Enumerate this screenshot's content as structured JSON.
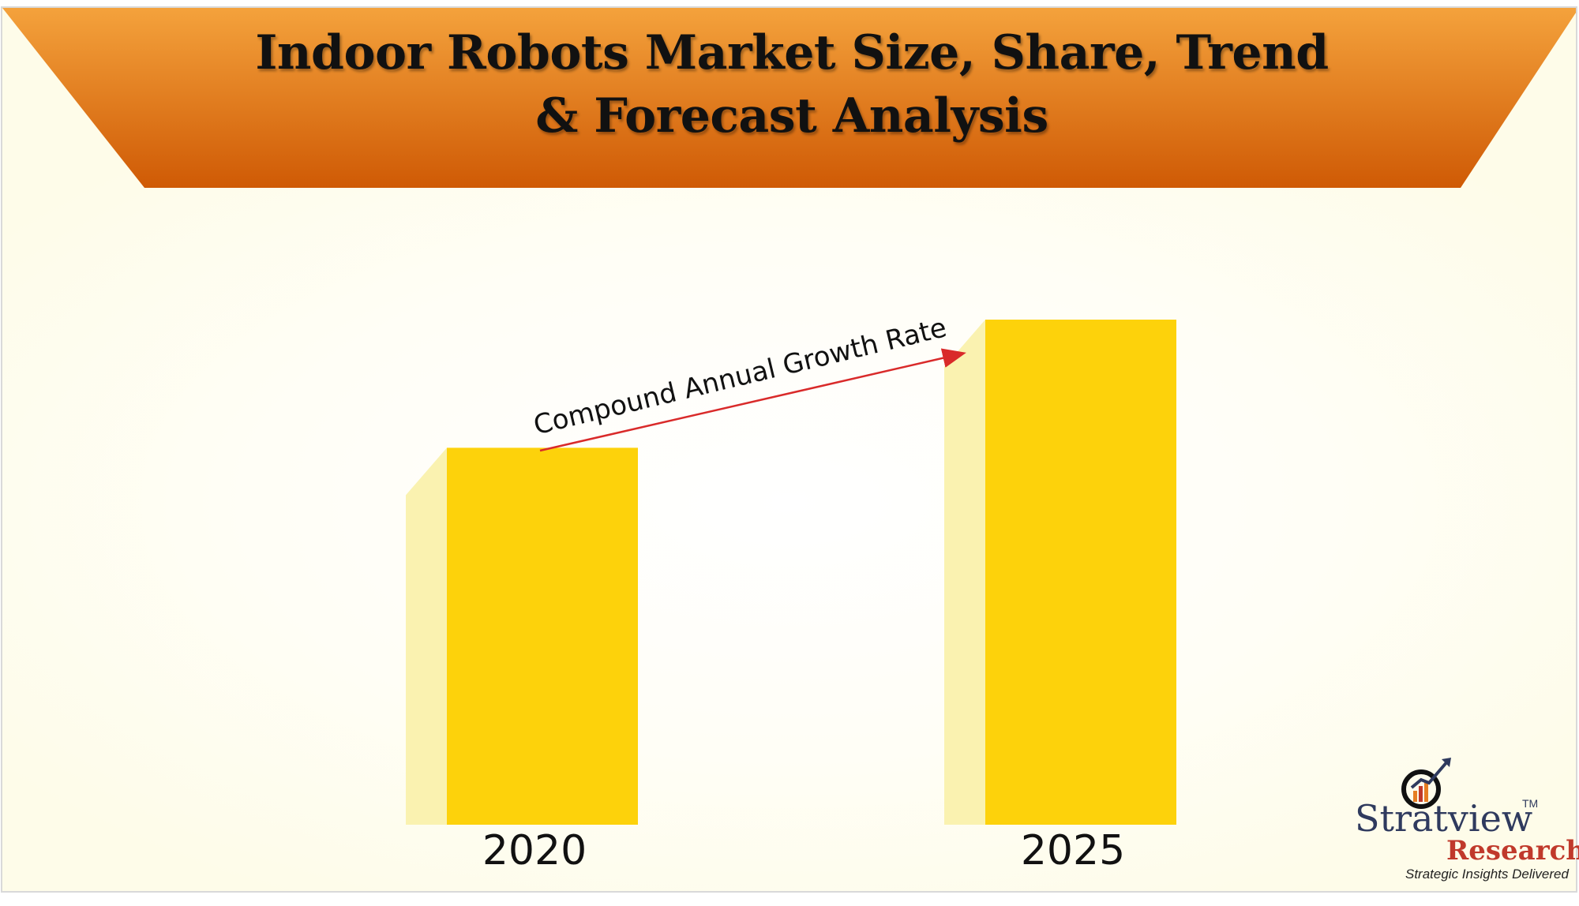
{
  "title": {
    "line1": "Indoor Robots Market Size, Share, Trend",
    "line2": "& Forecast Analysis"
  },
  "colors": {
    "banner_top": "#f4a23c",
    "banner_bottom": "#cf5a05",
    "bar_face": "#fdd20b",
    "bar_side": "#faf2b0",
    "arrow": "#d92a2a",
    "brand_navy": "#2f3a5e",
    "brand_red": "#c0392b"
  },
  "chart_data": {
    "type": "bar",
    "categories": [
      "2020",
      "2025"
    ],
    "values": [
      1.0,
      1.34
    ],
    "title": "Indoor Robots Market Size, Share, Trend & Forecast Analysis",
    "xlabel": "",
    "ylabel": "",
    "ylim": [
      0,
      1.34
    ],
    "grid": false,
    "annotation": "Compound Annual Growth Rate"
  },
  "logo": {
    "wordmark": "Stratview",
    "sub": "Research",
    "trademark": "TM",
    "tagline": "Strategic Insights Delivered",
    "icon": "magnifier-chart-icon"
  }
}
